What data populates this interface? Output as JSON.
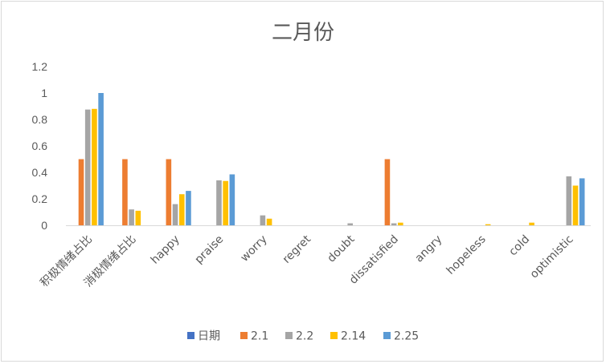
{
  "chart_data": {
    "type": "bar",
    "title": "二月份",
    "xlabel": "",
    "ylabel": "",
    "ylim": [
      0,
      1.2
    ],
    "yticks": [
      "0",
      "0.2",
      "0.4",
      "0.6",
      "0.8",
      "1",
      "1.2"
    ],
    "grid": false,
    "legend_position": "bottom",
    "categories": [
      "积极情绪占比",
      "消极情绪占比",
      "happy",
      "praise",
      "worry",
      "regret",
      "doubt",
      "dissatisfied",
      "angry",
      "hopeless",
      "cold",
      "optimistic"
    ],
    "series": [
      {
        "name": "日期",
        "color": "#4472c4",
        "values": [
          0,
          0,
          0,
          0,
          0,
          0,
          0,
          0,
          0,
          0,
          0,
          0
        ]
      },
      {
        "name": "2.1",
        "color": "#ed7d31",
        "values": [
          0.5,
          0.5,
          0.5,
          0,
          0,
          0,
          0,
          0.5,
          0,
          0,
          0,
          0
        ]
      },
      {
        "name": "2.2",
        "color": "#a5a5a5",
        "values": [
          0.875,
          0.12,
          0.16,
          0.34,
          0.075,
          0,
          0.015,
          0.015,
          0,
          0,
          0,
          0.37
        ]
      },
      {
        "name": "2.14",
        "color": "#ffc000",
        "values": [
          0.88,
          0.11,
          0.235,
          0.335,
          0.05,
          0,
          0,
          0.02,
          0,
          0.008,
          0.02,
          0.3
        ]
      },
      {
        "name": "2.25",
        "color": "#5b9bd5",
        "values": [
          1,
          0,
          0.26,
          0.385,
          0,
          0,
          0,
          0,
          0,
          0,
          0,
          0.355
        ]
      }
    ]
  }
}
